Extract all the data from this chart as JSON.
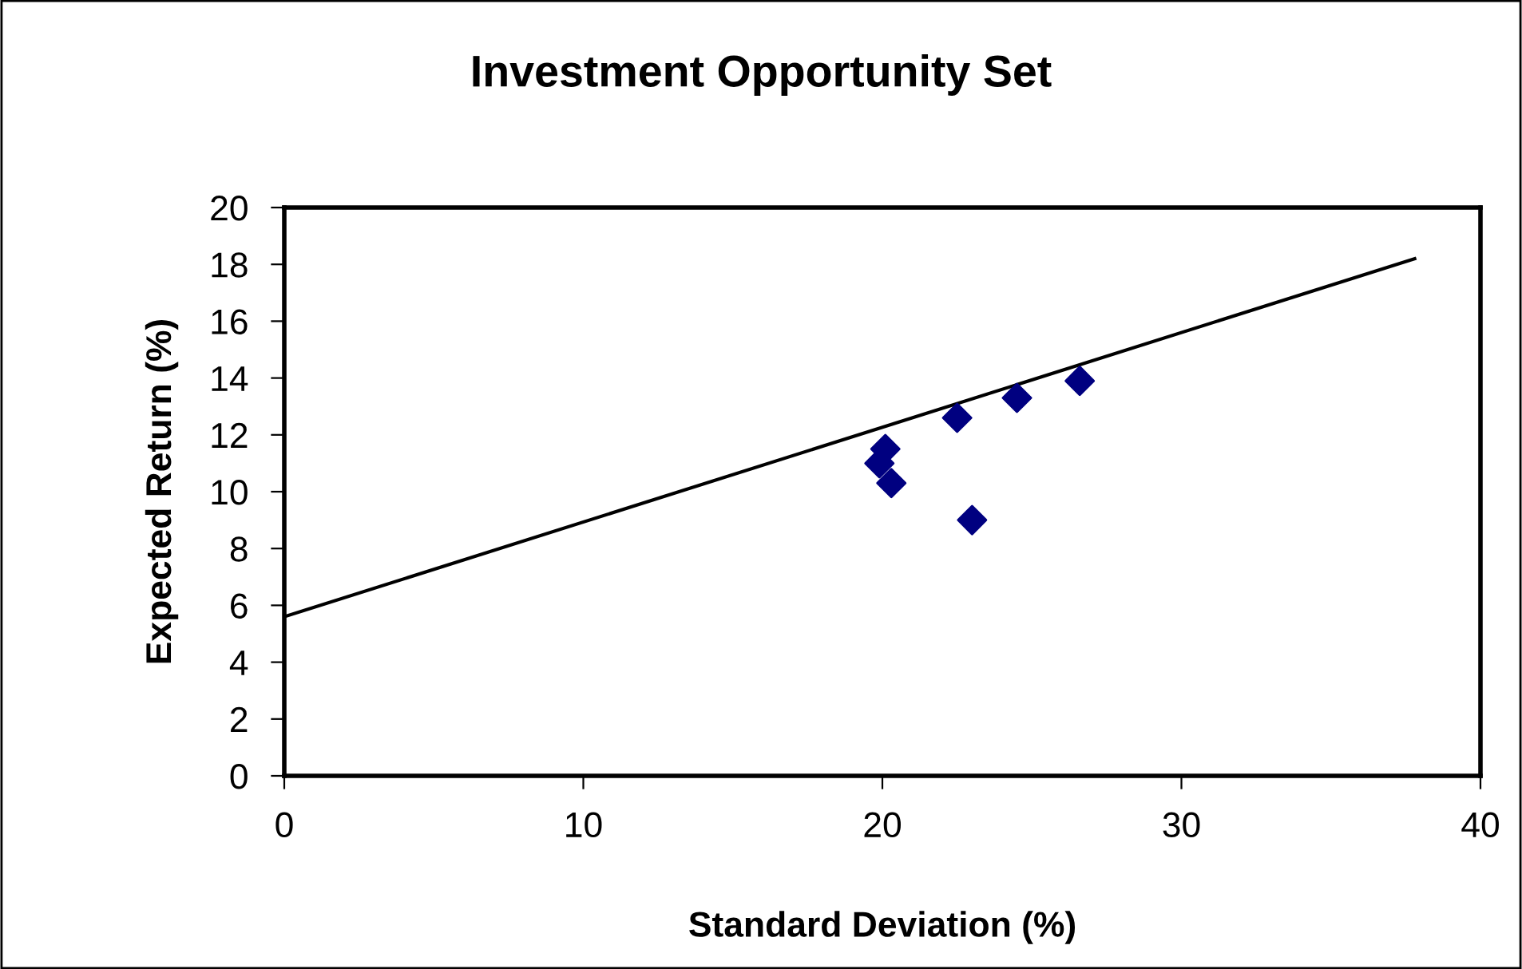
{
  "chart_data": {
    "type": "scatter",
    "title": "Investment Opportunity Set",
    "xlabel": "Standard Deviation (%)",
    "ylabel": "Expected Return (%)",
    "x": [
      20.1,
      19.9,
      20.3,
      22.5,
      23.0,
      24.5,
      26.6
    ],
    "series": [
      {
        "color": "#000080",
        "marker": "diamond",
        "values": [
          11.5,
          11.0,
          10.3,
          12.6,
          9.0,
          13.3,
          13.9
        ]
      },
      {
        "type": "line",
        "color": "#000000",
        "marker": "none",
        "line_style": "solid",
        "x": [
          0,
          37.8
        ],
        "values": [
          5.6,
          18.2
        ]
      }
    ],
    "xlim": [
      0,
      40
    ],
    "xticks": [
      0,
      10,
      20,
      30,
      40
    ],
    "ylim": [
      0,
      20
    ],
    "yticks": [
      0,
      2,
      4,
      6,
      8,
      10,
      12,
      14,
      16,
      18,
      20
    ],
    "grid": false,
    "legend": false
  }
}
